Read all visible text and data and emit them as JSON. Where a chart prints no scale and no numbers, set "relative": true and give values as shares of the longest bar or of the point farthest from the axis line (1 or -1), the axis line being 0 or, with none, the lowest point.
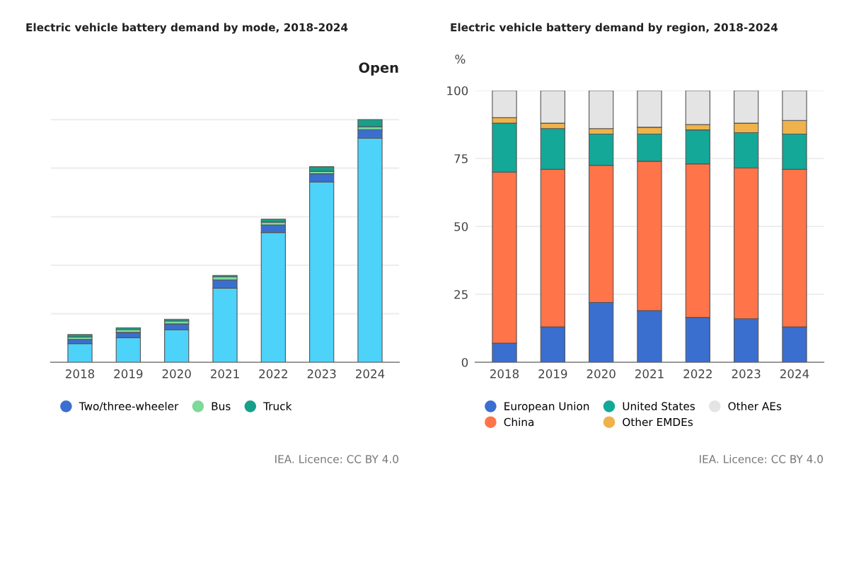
{
  "chart_data": [
    {
      "type": "bar",
      "title": "Electric vehicle battery demand by mode, 2018-2024",
      "relative": true,
      "stacked": true,
      "grid": "y",
      "legend": "bottom",
      "marker": "circle",
      "categories": [
        "2018",
        "2019",
        "2020",
        "2021",
        "2022",
        "2023",
        "2024"
      ],
      "series": [
        {
          "color": "#4dd2fa",
          "values": [
            0.077,
            0.101,
            0.134,
            0.305,
            0.535,
            0.743,
            0.923
          ]
        },
        {
          "name": "Two/three-wheeler",
          "color": "#3b6fcf",
          "values": [
            0.017,
            0.022,
            0.024,
            0.034,
            0.031,
            0.034,
            0.036
          ]
        },
        {
          "name": "Bus",
          "color": "#7ed99a",
          "values": [
            0.01,
            0.012,
            0.012,
            0.014,
            0.012,
            0.01,
            0.012
          ]
        },
        {
          "name": "Truck",
          "color": "#16a08a",
          "values": [
            0.01,
            0.007,
            0.007,
            0.005,
            0.012,
            0.019,
            0.029
          ]
        }
      ],
      "annotations": [
        "Open",
        "IEA. Licence: CC BY 4.0"
      ]
    },
    {
      "type": "bar",
      "title": "Electric vehicle battery demand by region, 2018-2024",
      "ylabel": "%",
      "stacked": true,
      "grid": "y",
      "legend": "bottom",
      "marker": "circle",
      "ylim": [
        0,
        100
      ],
      "yticks": [
        0,
        25,
        50,
        75,
        100
      ],
      "categories": [
        "2018",
        "2019",
        "2020",
        "2021",
        "2022",
        "2023",
        "2024"
      ],
      "series": [
        {
          "name": "European Union",
          "color": "#3a6fd0",
          "values": [
            7,
            13,
            22,
            19,
            16.5,
            16,
            13
          ]
        },
        {
          "name": "China",
          "color": "#ff7448",
          "values": [
            63,
            58,
            50.5,
            55,
            56.5,
            55.5,
            58
          ]
        },
        {
          "name": "United States",
          "color": "#14a898",
          "values": [
            18,
            15,
            11.5,
            10,
            12.5,
            13,
            13
          ]
        },
        {
          "name": "Other EMDEs",
          "color": "#f0b24a",
          "values": [
            2,
            2,
            2,
            2.5,
            2,
            3.5,
            5
          ]
        },
        {
          "name": "Other AEs",
          "color": "#e4e4e4",
          "values": [
            10,
            12,
            14,
            13.5,
            12.5,
            12,
            11
          ]
        }
      ],
      "annotations": [
        "IEA. Licence: CC BY 4.0"
      ]
    }
  ]
}
